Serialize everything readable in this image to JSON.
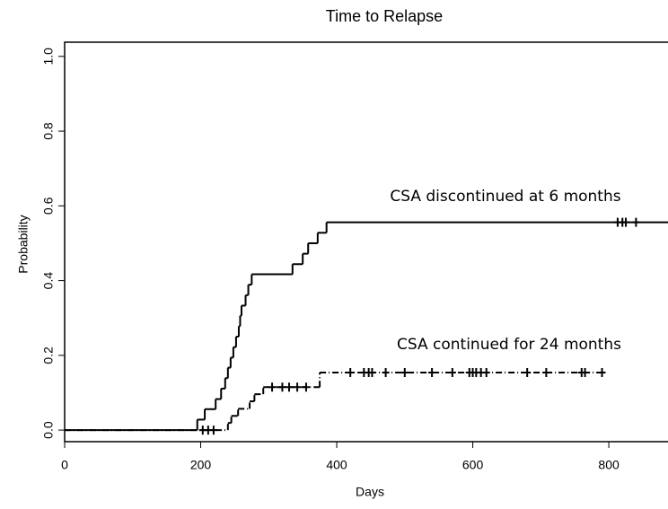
{
  "chart_data": {
    "type": "step",
    "title": "Time to Relapse",
    "x_label": "Days",
    "y_label": "Probability",
    "xlim": [
      0,
      887
    ],
    "ylim": [
      -0.031,
      1.038
    ],
    "xticks": [
      0,
      200,
      400,
      600,
      800
    ],
    "yticks": [
      {
        "value": 0,
        "label": "0.0"
      },
      0.2,
      0.4,
      0.6,
      0.8,
      {
        "value": 1,
        "label": "1.0"
      }
    ],
    "series": [
      {
        "name": "CSA discontinued at 6 months",
        "color": "#000000",
        "dash": "solid",
        "x": [
          0,
          195,
          206,
          222,
          230,
          236,
          240,
          244,
          248,
          252,
          256,
          258,
          260,
          266,
          270,
          275,
          335,
          350,
          358,
          372,
          385,
          887
        ],
        "values": [
          0,
          0.028,
          0.056,
          0.083,
          0.111,
          0.139,
          0.167,
          0.194,
          0.222,
          0.25,
          0.278,
          0.306,
          0.333,
          0.361,
          0.389,
          0.417,
          0.444,
          0.472,
          0.5,
          0.528,
          0.556,
          0.556
        ],
        "censored_x": [
          813,
          820,
          825,
          840
        ],
        "censored_values": [
          0.556,
          0.556,
          0.556,
          0.556
        ]
      },
      {
        "name": "CSA continued for 24 months",
        "color": "#000000",
        "dash": "dashdot",
        "x": [
          0,
          240,
          245,
          255,
          272,
          279,
          292,
          375,
          795
        ],
        "values": [
          0,
          0.019,
          0.038,
          0.057,
          0.077,
          0.096,
          0.115,
          0.154,
          0.154
        ],
        "censored_x": [
          203,
          211,
          219,
          305,
          320,
          330,
          342,
          355,
          420,
          440,
          447,
          452,
          472,
          500,
          540,
          570,
          595,
          600,
          605,
          612,
          620,
          680,
          708,
          760,
          765,
          790
        ],
        "censored_values": [
          0,
          0,
          0,
          0.115,
          0.115,
          0.115,
          0.115,
          0.115,
          0.154,
          0.154,
          0.154,
          0.154,
          0.154,
          0.154,
          0.154,
          0.154,
          0.154,
          0.154,
          0.154,
          0.154,
          0.154,
          0.154,
          0.154,
          0.154,
          0.154,
          0.154
        ]
      }
    ]
  }
}
